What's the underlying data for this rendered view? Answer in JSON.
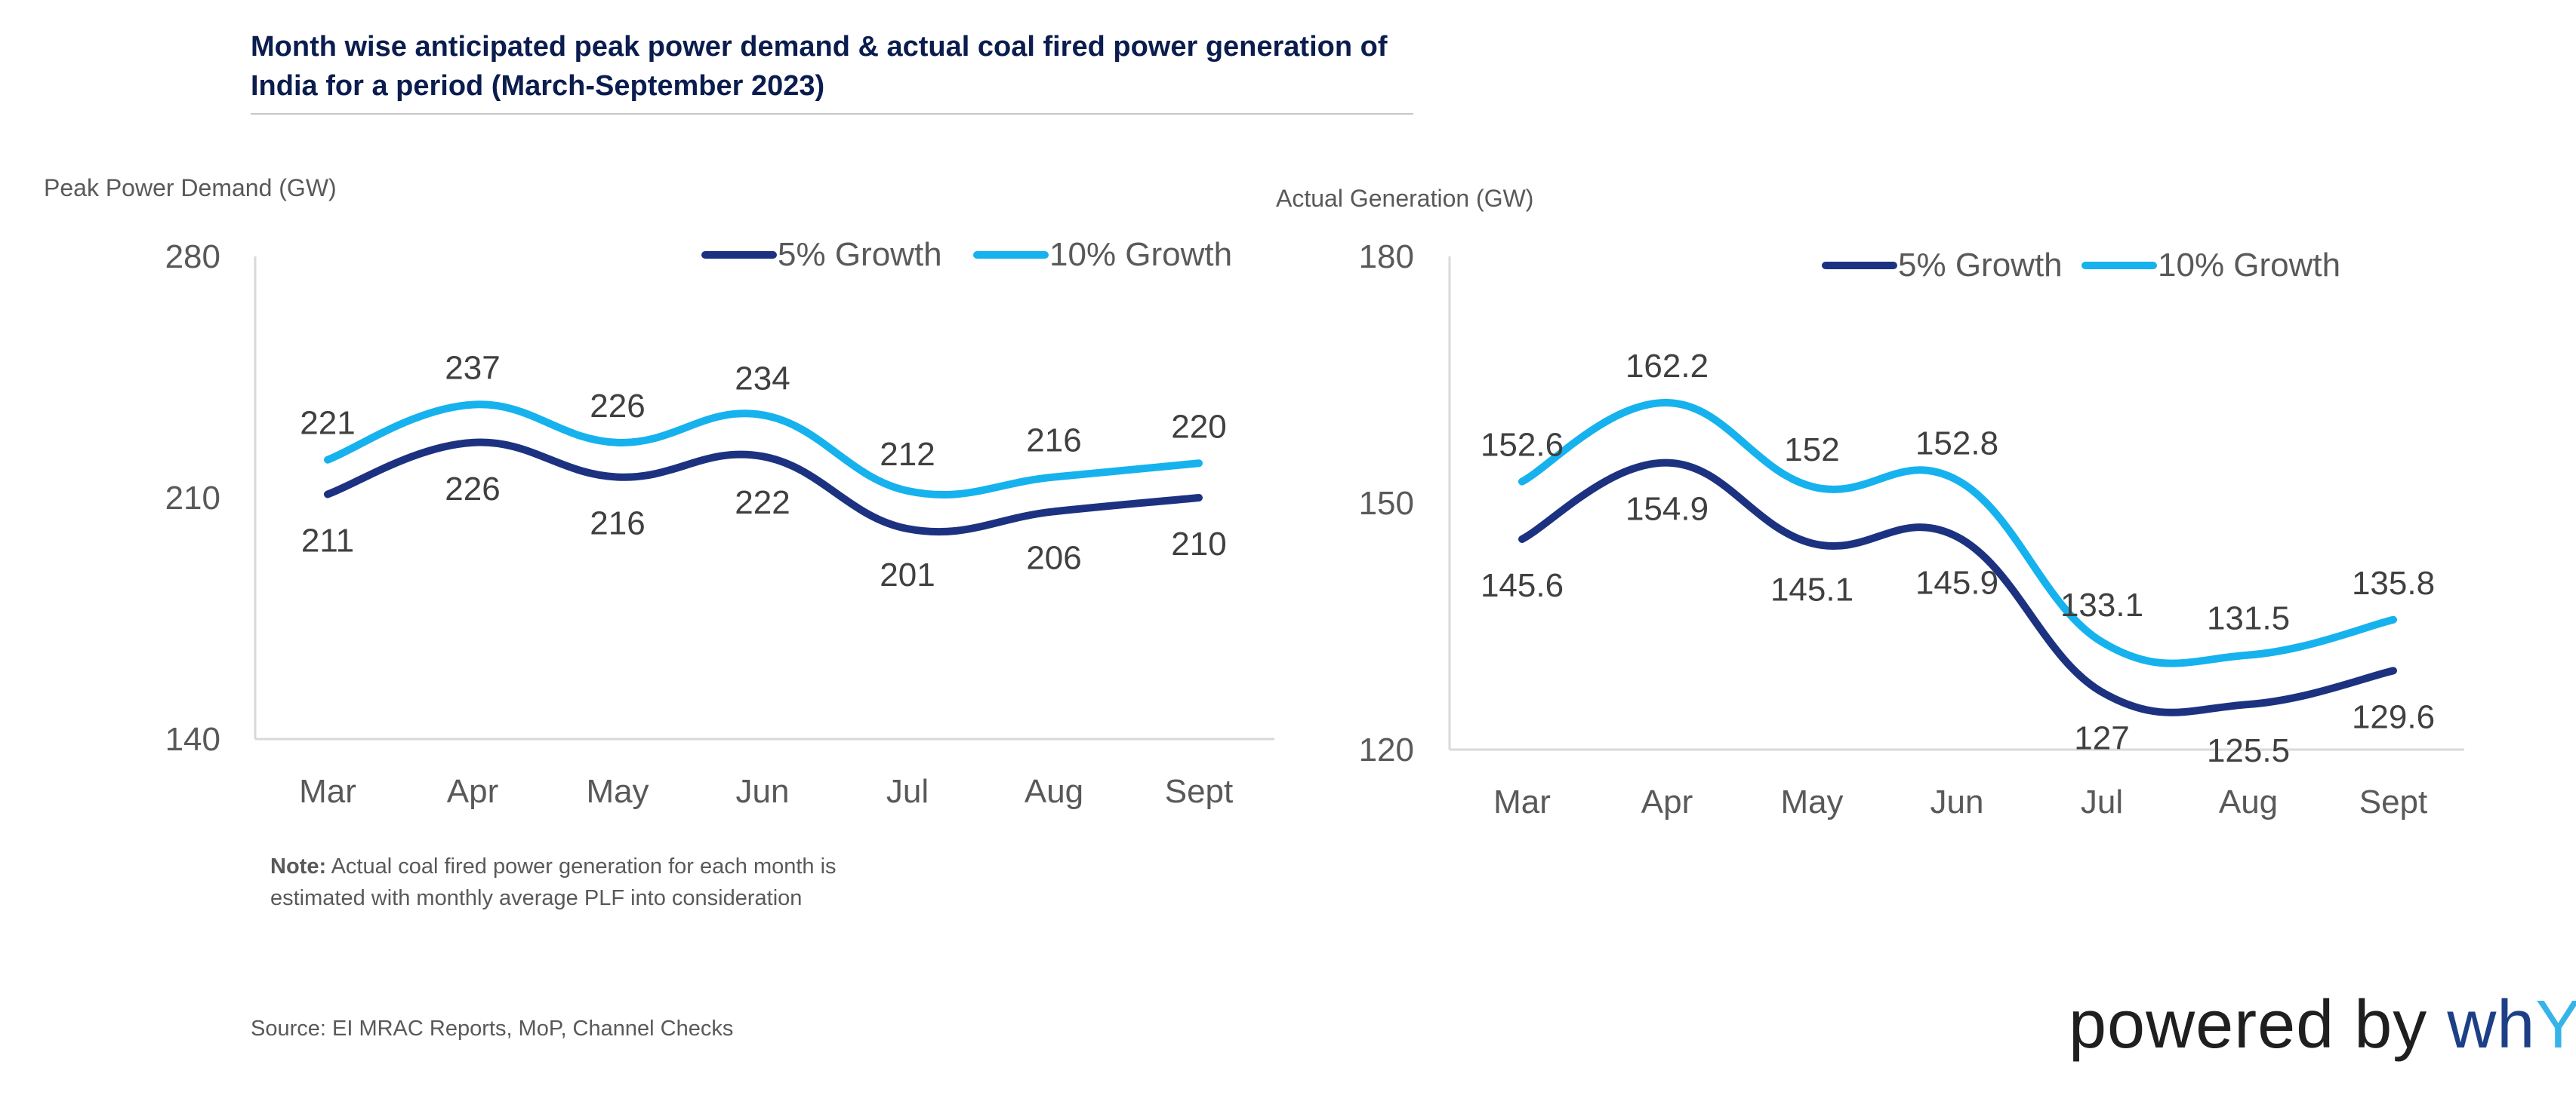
{
  "header": {
    "title_line1": "Month wise anticipated peak power demand & actual coal fired power generation of",
    "title_line2": "India for a period (March-September 2023)"
  },
  "colors": {
    "dark": "#1c3281",
    "light": "#16b2ee",
    "axis": "#d9d9d9"
  },
  "chart_data": [
    {
      "type": "line",
      "ylabel": "Peak Power Demand (GW)",
      "ylim": [
        140,
        280
      ],
      "yticks": [
        "140",
        "210",
        "280"
      ],
      "categories": [
        "Mar",
        "Apr",
        "May",
        "Jun",
        "Jul",
        "Aug",
        "Sept"
      ],
      "series": [
        {
          "name": "5% Growth",
          "values": [
            211,
            226,
            216,
            222,
            201,
            206,
            210
          ],
          "labels": [
            "211",
            "226",
            "216",
            "222",
            "201",
            "206",
            "210"
          ]
        },
        {
          "name": "10% Growth",
          "values": [
            221,
            237,
            226,
            234,
            212,
            216,
            220
          ],
          "labels": [
            "221",
            "237",
            "226",
            "234",
            "212",
            "216",
            "220"
          ]
        }
      ]
    },
    {
      "type": "line",
      "ylabel": "Actual Generation (GW)",
      "ylim": [
        120,
        180
      ],
      "yticks": [
        "120",
        "150",
        "180"
      ],
      "categories": [
        "Mar",
        "Apr",
        "May",
        "Jun",
        "Jul",
        "Aug",
        "Sept"
      ],
      "series": [
        {
          "name": "5% Growth",
          "values": [
            145.6,
            154.9,
            145.1,
            145.9,
            127,
            125.5,
            129.6
          ],
          "labels": [
            "145.6",
            "154.9",
            "145.1",
            "145.9",
            "127",
            "125.5",
            "129.6"
          ]
        },
        {
          "name": "10% Growth",
          "values": [
            152.6,
            162.2,
            152,
            152.8,
            133.1,
            131.5,
            135.8
          ],
          "labels": [
            "152.6",
            "162.2",
            "152",
            "152.8",
            "133.1",
            "131.5",
            "135.8"
          ]
        }
      ]
    }
  ],
  "note": {
    "bold": "Note:",
    "line1": " Actual coal fired power generation for each month is",
    "line2": "estimated with monthly average PLF into consideration"
  },
  "source": "Source: EI MRAC Reports, MoP, Channel Checks",
  "brand": {
    "prefix": "powered by ",
    "wh": "wh",
    "y": "Y"
  }
}
